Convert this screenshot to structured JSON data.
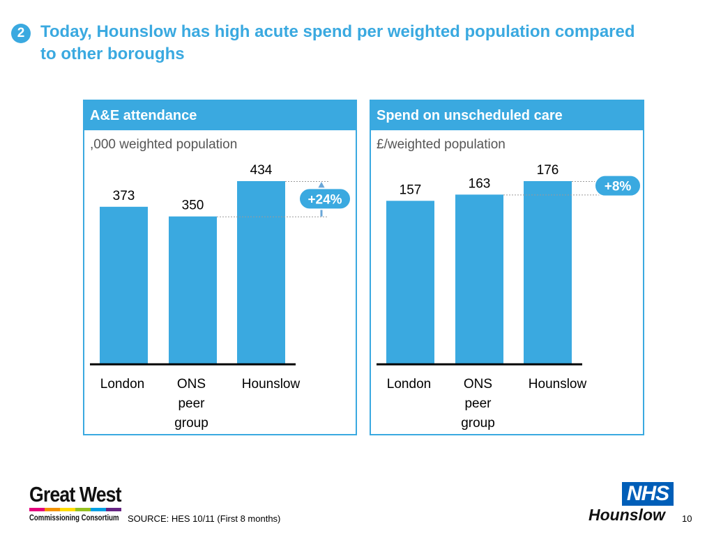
{
  "header": {
    "step_number": "2",
    "title": "Today, Hounslow has high acute spend per weighted population compared to other boroughs"
  },
  "chart_data": [
    {
      "type": "bar",
      "title": "A&E attendance",
      "subtitle": ",000 weighted population",
      "categories": [
        "London",
        "ONS peer group",
        "Hounslow"
      ],
      "category_lines": [
        [
          "London"
        ],
        [
          "ONS",
          "peer",
          "group"
        ],
        [
          "Hounslow"
        ]
      ],
      "values": [
        373,
        350,
        434
      ],
      "value_labels": [
        "373",
        "350",
        "434"
      ],
      "annotation": "+24%",
      "color": "#3aa9e0",
      "grid": false
    },
    {
      "type": "bar",
      "title": "Spend on unscheduled care",
      "subtitle": "£/weighted population",
      "categories": [
        "London",
        "ONS peer group",
        "Hounslow"
      ],
      "category_lines": [
        [
          "London"
        ],
        [
          "ONS",
          "peer",
          "group"
        ],
        [
          "Hounslow"
        ]
      ],
      "values": [
        157,
        163,
        176
      ],
      "value_labels": [
        "157",
        "163",
        "176"
      ],
      "annotation": "+8%",
      "color": "#3aa9e0",
      "grid": false
    }
  ],
  "footer": {
    "source": "SOURCE: HES 10/11 (First 8 months)",
    "page_number": "10"
  },
  "logos": {
    "left_main": "Great West",
    "left_sub": "Commissioning Consortium",
    "nhs_mark": "NHS",
    "nhs_org": "Hounslow"
  },
  "colors": {
    "accent": "#3aa9e0",
    "nhs_blue": "#005eb8"
  }
}
